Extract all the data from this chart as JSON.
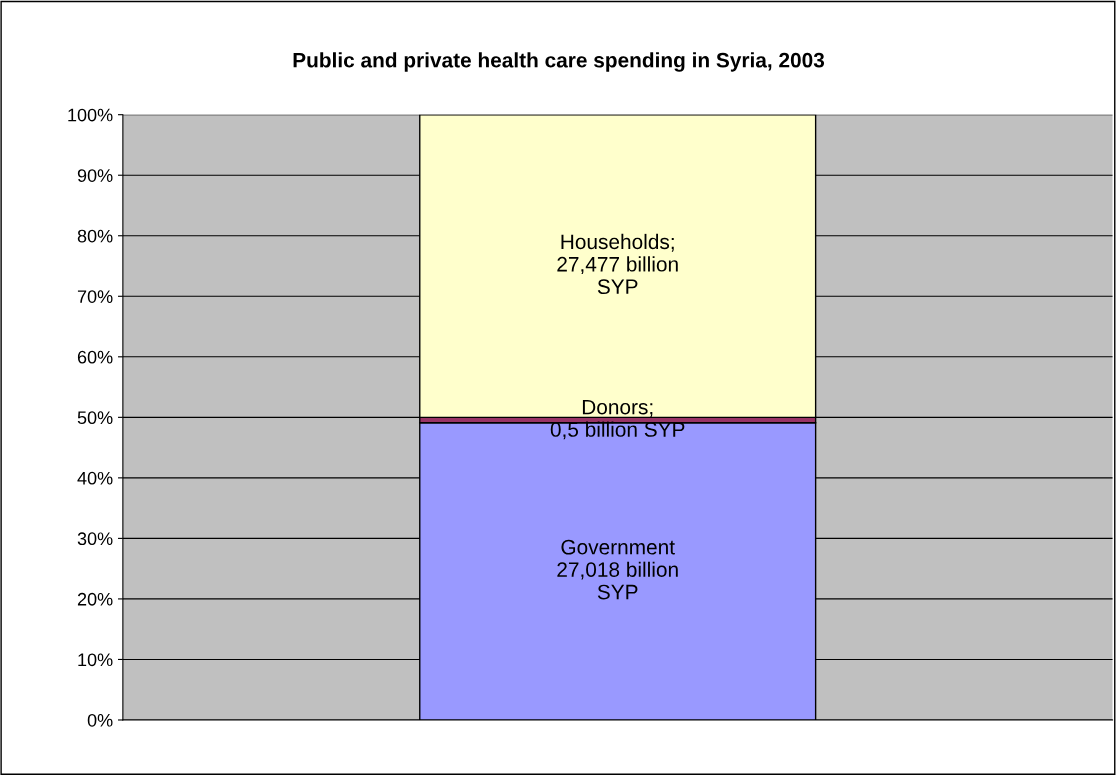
{
  "chart_data": {
    "type": "bar",
    "stacked": true,
    "title": "Public and private health care spending in Syria, 2003",
    "categories": [
      null
    ],
    "series": [
      {
        "color": "#9999ff",
        "values": [
          49.1
        ]
      },
      {
        "color": "#993366",
        "values": [
          0.9
        ]
      },
      {
        "color": "#ffffcc",
        "values": [
          50.0
        ]
      }
    ],
    "annotations": [
      "Government\n27,018 billion\nSYP",
      "Donors;\n0,5 billion SYP",
      "Households;\n27,477 billion\nSYP"
    ],
    "ylim": [
      0,
      100
    ],
    "yticks": [
      {
        "value": 0,
        "label": "0%"
      },
      {
        "value": 10,
        "label": "10%"
      },
      {
        "value": 20,
        "label": "20%"
      },
      {
        "value": 30,
        "label": "30%"
      },
      {
        "value": 40,
        "label": "40%"
      },
      {
        "value": 50,
        "label": "50%"
      },
      {
        "value": 60,
        "label": "60%"
      },
      {
        "value": 70,
        "label": "70%"
      },
      {
        "value": 80,
        "label": "80%"
      },
      {
        "value": 90,
        "label": "90%"
      },
      {
        "value": 100,
        "label": "100%"
      }
    ],
    "grid": "y",
    "tick_labels": "y",
    "legend": false
  }
}
